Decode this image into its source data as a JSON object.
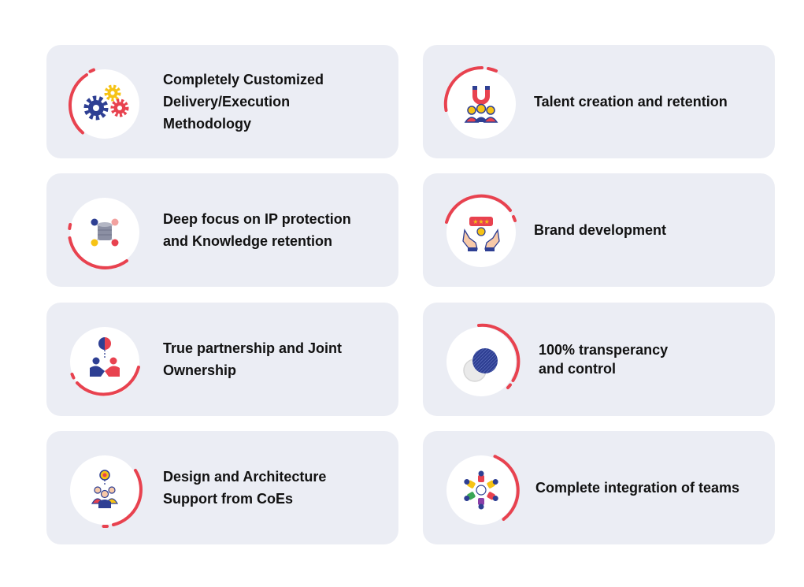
{
  "cards": [
    {
      "title": "Completely Customized\nDelivery/Execution\nMethodology",
      "icon": "gears-icon"
    },
    {
      "title": "Talent creation and retention",
      "icon": "magnet-team-icon"
    },
    {
      "title": "Deep focus on IP protection\nand Knowledge retention",
      "icon": "database-network-icon"
    },
    {
      "title": "Brand development",
      "icon": "hands-rating-icon"
    },
    {
      "title": "True partnership and Joint\nOwnership",
      "icon": "handshake-icon"
    },
    {
      "title": "100% transperancy\nand control",
      "icon": "transparency-circles-icon"
    },
    {
      "title": "Design and Architecture\nSupport from CoEs",
      "icon": "team-idea-icon"
    },
    {
      "title": "Complete integration of teams",
      "icon": "team-integration-icon"
    }
  ],
  "colors": {
    "card_bg": "#ebedf4",
    "accent_red": "#e8424f",
    "icon_blue": "#2e3f93",
    "icon_yellow": "#f6c315",
    "text": "#111111"
  }
}
